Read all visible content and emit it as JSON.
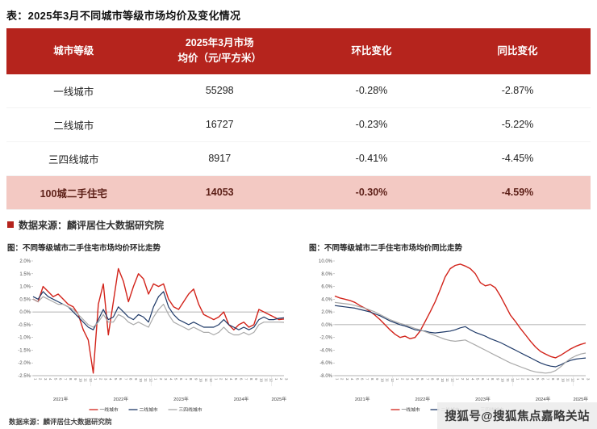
{
  "page_title": "表：2025年3月不同城市等级市场均价及变化情况",
  "table": {
    "headers": {
      "col1": "城市等级",
      "col2_line1": "2025年3月市场",
      "col2_line2": "均价（元/平方米）",
      "col3": "环比变化",
      "col4": "同比变化"
    },
    "rows": [
      {
        "tier": "一线城市",
        "price": "55298",
        "mom": "-0.28%",
        "yoy": "-2.87%",
        "highlight": false
      },
      {
        "tier": "二线城市",
        "price": "16727",
        "mom": "-0.23%",
        "yoy": "-5.22%",
        "highlight": false
      },
      {
        "tier": "三四线城市",
        "price": "8917",
        "mom": "-0.41%",
        "yoy": "-4.45%",
        "highlight": false
      },
      {
        "tier": "100城二手住宅",
        "price": "14053",
        "mom": "-0.30%",
        "yoy": "-4.59%",
        "highlight": true
      }
    ]
  },
  "table_source": "数据来源：麟评居住大数据研究院",
  "chart_source": "数据来源：麟评居住大数据研究院",
  "watermark": "搜狐号@搜狐焦点嘉略关站",
  "colors": {
    "table_header_bg": "#b5241d",
    "highlight_row_bg": "#f3c9c3",
    "tier1_line": "#d2231a",
    "tier2_line": "#1f3a68",
    "tier34_line": "#a9a9a9"
  },
  "chart_data": [
    {
      "type": "line",
      "title": "图：不同等级城市二手住宅市场均价环比走势",
      "ylim": [
        -2.5,
        2.0
      ],
      "ytick_step": 0.5,
      "x": [
        "2021-1",
        "2021-2",
        "2021-3",
        "2021-4",
        "2021-5",
        "2021-6",
        "2021-7",
        "2021-8",
        "2021-9",
        "2021-10",
        "2021-11",
        "2021-12",
        "2022-1",
        "2022-2",
        "2022-3",
        "2022-4",
        "2022-5",
        "2022-6",
        "2022-7",
        "2022-8",
        "2022-9",
        "2022-10",
        "2022-11",
        "2022-12",
        "2023-1",
        "2023-2",
        "2023-3",
        "2023-4",
        "2023-5",
        "2023-6",
        "2023-7",
        "2023-8",
        "2023-9",
        "2023-10",
        "2023-11",
        "2023-12",
        "2024-1",
        "2024-2",
        "2024-3",
        "2024-4",
        "2024-5",
        "2024-6",
        "2024-7",
        "2024-8",
        "2024-9",
        "2024-10",
        "2024-11",
        "2024-12",
        "2025-1",
        "2025-2",
        "2025-3"
      ],
      "series": [
        {
          "name": "一线城市",
          "color": "#d2231a",
          "width": 1.4,
          "values": [
            0.5,
            0.4,
            1.0,
            0.8,
            0.6,
            0.7,
            0.5,
            0.3,
            0.2,
            -0.1,
            -0.7,
            -1.1,
            -2.4,
            0.3,
            1.1,
            -0.9,
            0.4,
            1.7,
            1.2,
            0.4,
            1.0,
            1.5,
            1.3,
            0.7,
            1.1,
            1.0,
            1.1,
            0.5,
            0.2,
            0.1,
            0.4,
            0.7,
            0.9,
            0.3,
            -0.1,
            -0.2,
            -0.3,
            -0.2,
            0.0,
            -0.5,
            -0.7,
            -0.5,
            -0.4,
            -0.6,
            -0.5,
            0.1,
            0.0,
            -0.1,
            -0.2,
            -0.3,
            -0.28
          ]
        },
        {
          "name": "二线城市",
          "color": "#1f3a68",
          "width": 1.2,
          "values": [
            0.6,
            0.5,
            0.8,
            0.6,
            0.5,
            0.4,
            0.3,
            0.2,
            0.0,
            -0.2,
            -0.4,
            -0.6,
            -0.7,
            -0.3,
            0.1,
            -0.3,
            -0.2,
            0.2,
            0.0,
            -0.2,
            -0.3,
            -0.1,
            -0.2,
            -0.4,
            0.2,
            0.6,
            0.8,
            0.2,
            -0.1,
            -0.3,
            -0.4,
            -0.5,
            -0.4,
            -0.5,
            -0.6,
            -0.6,
            -0.6,
            -0.5,
            -0.3,
            -0.5,
            -0.6,
            -0.7,
            -0.6,
            -0.7,
            -0.6,
            -0.3,
            -0.2,
            -0.3,
            -0.3,
            -0.25,
            -0.23
          ]
        },
        {
          "name": "三四线城市",
          "color": "#a9a9a9",
          "width": 1.2,
          "values": [
            0.5,
            0.4,
            0.6,
            0.5,
            0.4,
            0.3,
            0.3,
            0.2,
            0.1,
            -0.1,
            -0.3,
            -0.5,
            -0.6,
            -0.4,
            -0.1,
            -0.4,
            -0.4,
            -0.1,
            -0.2,
            -0.4,
            -0.5,
            -0.4,
            -0.5,
            -0.6,
            -0.2,
            0.1,
            0.3,
            -0.1,
            -0.4,
            -0.5,
            -0.6,
            -0.7,
            -0.6,
            -0.7,
            -0.8,
            -0.8,
            -0.9,
            -0.8,
            -0.6,
            -0.8,
            -0.9,
            -0.9,
            -0.8,
            -0.9,
            -0.8,
            -0.5,
            -0.4,
            -0.4,
            -0.4,
            -0.4,
            -0.41
          ]
        }
      ]
    },
    {
      "type": "line",
      "title": "图：不同等级城市二手住宅市场均价同比走势",
      "ylim": [
        -8.0,
        10.0
      ],
      "ytick_step": 2.0,
      "x": [
        "2021-1",
        "2021-2",
        "2021-3",
        "2021-4",
        "2021-5",
        "2021-6",
        "2021-7",
        "2021-8",
        "2021-9",
        "2021-10",
        "2021-11",
        "2021-12",
        "2022-1",
        "2022-2",
        "2022-3",
        "2022-4",
        "2022-5",
        "2022-6",
        "2022-7",
        "2022-8",
        "2022-9",
        "2022-10",
        "2022-11",
        "2022-12",
        "2023-1",
        "2023-2",
        "2023-3",
        "2023-4",
        "2023-5",
        "2023-6",
        "2023-7",
        "2023-8",
        "2023-9",
        "2023-10",
        "2023-11",
        "2023-12",
        "2024-1",
        "2024-2",
        "2024-3",
        "2024-4",
        "2024-5",
        "2024-6",
        "2024-7",
        "2024-8",
        "2024-9",
        "2024-10",
        "2024-11",
        "2024-12",
        "2025-1",
        "2025-2",
        "2025-3"
      ],
      "series": [
        {
          "name": "一线城市",
          "color": "#d2231a",
          "width": 1.4,
          "values": [
            4.5,
            4.2,
            4.0,
            3.8,
            3.5,
            3.0,
            2.6,
            2.1,
            1.5,
            0.8,
            0.0,
            -0.8,
            -1.5,
            -2.0,
            -1.8,
            -2.2,
            -2.0,
            -1.0,
            0.5,
            2.0,
            3.6,
            5.5,
            7.5,
            8.8,
            9.3,
            9.5,
            9.2,
            8.8,
            8.0,
            6.6,
            6.1,
            6.3,
            5.8,
            4.5,
            3.0,
            1.5,
            0.5,
            -0.6,
            -1.6,
            -2.6,
            -3.5,
            -4.2,
            -4.6,
            -5.0,
            -5.2,
            -4.8,
            -4.3,
            -3.8,
            -3.4,
            -3.1,
            -2.87
          ]
        },
        {
          "name": "二线城市",
          "color": "#1f3a68",
          "width": 1.2,
          "values": [
            3.0,
            2.9,
            2.8,
            2.7,
            2.6,
            2.4,
            2.2,
            2.0,
            1.7,
            1.4,
            1.0,
            0.6,
            0.3,
            0.0,
            -0.2,
            -0.5,
            -0.8,
            -0.9,
            -1.0,
            -1.2,
            -1.3,
            -1.2,
            -1.1,
            -1.0,
            -0.8,
            -0.5,
            -0.3,
            -0.8,
            -1.2,
            -1.5,
            -1.8,
            -2.2,
            -2.5,
            -2.8,
            -3.2,
            -3.6,
            -4.0,
            -4.4,
            -4.8,
            -5.2,
            -5.6,
            -6.0,
            -6.3,
            -6.5,
            -6.6,
            -6.3,
            -5.9,
            -5.6,
            -5.4,
            -5.3,
            -5.22
          ]
        },
        {
          "name": "三四线城市",
          "color": "#a9a9a9",
          "width": 1.2,
          "values": [
            3.5,
            3.4,
            3.3,
            3.2,
            3.0,
            2.8,
            2.6,
            2.3,
            2.0,
            1.6,
            1.2,
            0.8,
            0.5,
            0.2,
            0.0,
            -0.3,
            -0.6,
            -0.8,
            -1.1,
            -1.4,
            -1.7,
            -2.0,
            -2.3,
            -2.5,
            -2.6,
            -2.5,
            -2.4,
            -2.8,
            -3.2,
            -3.6,
            -4.0,
            -4.4,
            -4.8,
            -5.2,
            -5.6,
            -6.0,
            -6.3,
            -6.6,
            -6.9,
            -7.2,
            -7.4,
            -7.5,
            -7.6,
            -7.5,
            -7.2,
            -6.6,
            -5.9,
            -5.3,
            -4.9,
            -4.6,
            -4.45
          ]
        }
      ]
    }
  ]
}
